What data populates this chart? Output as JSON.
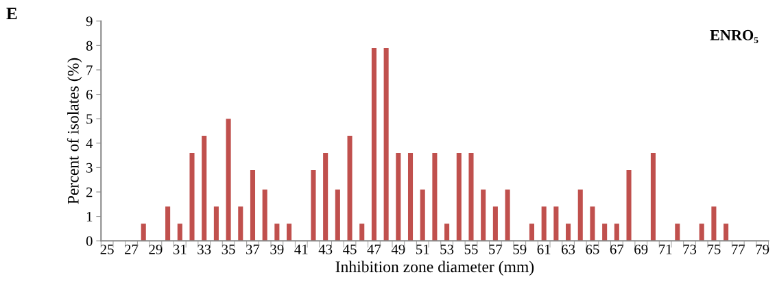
{
  "chart_data": {
    "type": "bar",
    "title": "ENRO₅",
    "xlabel": "Inhibition zone diameter (mm)",
    "ylabel": "Percent of isolates (%)",
    "annotations": [
      "E"
    ],
    "categories": [
      "25",
      null,
      "27",
      null,
      "29",
      null,
      "31",
      null,
      "33",
      null,
      "35",
      null,
      "37",
      null,
      "39",
      null,
      "41",
      null,
      "43",
      null,
      "45",
      null,
      "47",
      null,
      "49",
      null,
      "51",
      null,
      "53",
      null,
      "55",
      null,
      "57",
      null,
      "59",
      null,
      "61",
      null,
      "63",
      null,
      "65",
      null,
      "67",
      null,
      "69",
      null,
      "71",
      null,
      "73",
      null,
      "75",
      null,
      "77",
      null,
      "79"
    ],
    "values": [
      0,
      0,
      0,
      0.7,
      0,
      1.4,
      0.7,
      3.6,
      4.3,
      1.4,
      5,
      1.4,
      2.9,
      2.1,
      0.7,
      0.7,
      0,
      2.9,
      3.6,
      2.1,
      4.3,
      0.7,
      7.9,
      7.9,
      3.6,
      3.6,
      2.1,
      3.6,
      0.7,
      3.6,
      3.6,
      2.1,
      1.4,
      2.1,
      0,
      0.7,
      1.4,
      1.4,
      0.7,
      2.1,
      1.4,
      0.7,
      0.7,
      2.9,
      0,
      3.6,
      0,
      0.7,
      0,
      0.7,
      1.4,
      0.7,
      0,
      0,
      0
    ],
    "color": "#c0504d",
    "ylim": [
      0,
      9
    ],
    "yticks": [
      0,
      1,
      2,
      3,
      4,
      5,
      6,
      7,
      8,
      9
    ],
    "grid": false,
    "legend": false
  }
}
